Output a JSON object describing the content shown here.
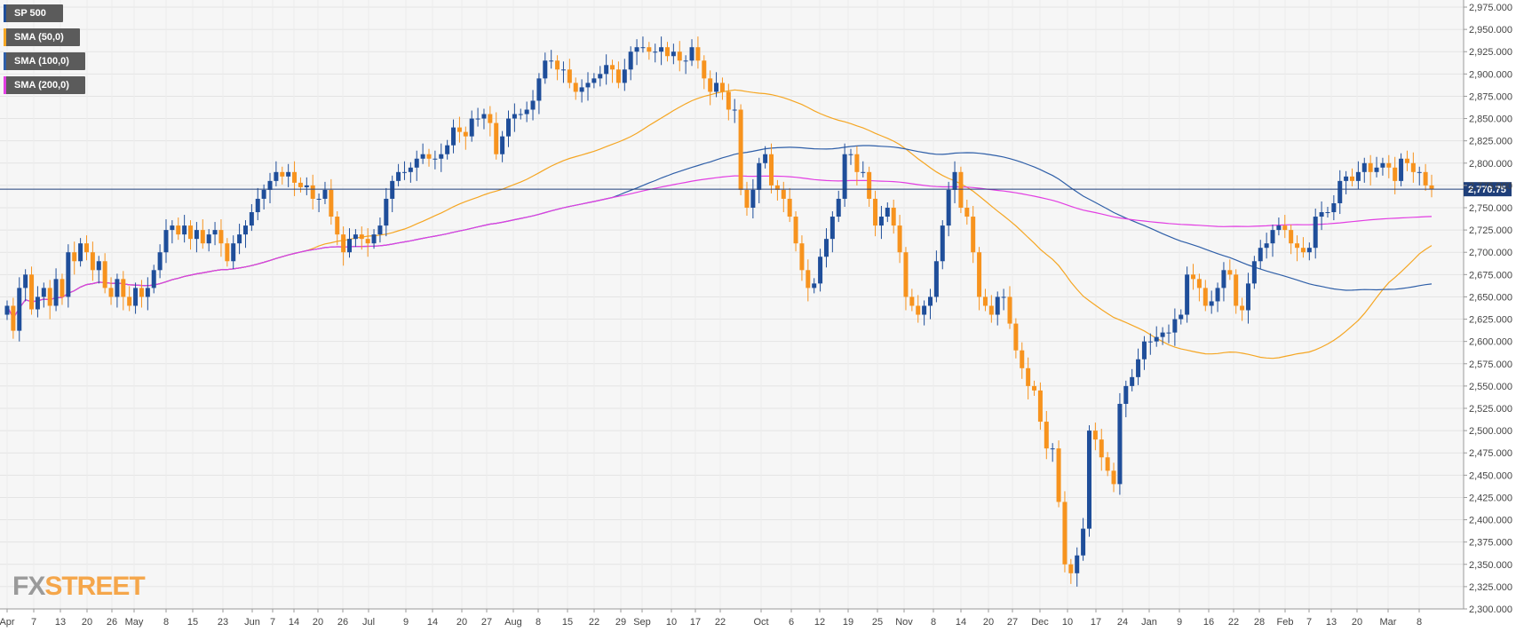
{
  "legend": [
    {
      "label": "SP 500",
      "color": "#1f4e9a"
    },
    {
      "label": "SMA (50,0)",
      "color": "#f5a623"
    },
    {
      "label": "SMA (100,0)",
      "color": "#2f5fa8"
    },
    {
      "label": "SMA (200,0)",
      "color": "#e23ee2"
    }
  ],
  "logo": {
    "part1": "FX",
    "part2": "STREET"
  },
  "chart_data": {
    "type": "candlestick",
    "title": "",
    "ylim": [
      2300,
      2975
    ],
    "y_ticks": [
      2300,
      2325,
      2350,
      2375,
      2400,
      2425,
      2450,
      2475,
      2500,
      2525,
      2550,
      2575,
      2600,
      2625,
      2650,
      2675,
      2700,
      2725,
      2750,
      2775,
      2800,
      2825,
      2850,
      2875,
      2900,
      2925,
      2950,
      2975
    ],
    "x_tick_labels": [
      "Apr",
      "7",
      "13",
      "20",
      "26",
      "May",
      "8",
      "15",
      "23",
      "Jun",
      "7",
      "14",
      "20",
      "26",
      "Jul",
      "9",
      "14",
      "20",
      "27",
      "Aug",
      "8",
      "15",
      "22",
      "29",
      "Sep",
      "10",
      "17",
      "22",
      "Oct",
      "6",
      "12",
      "19",
      "25",
      "Nov",
      "8",
      "14",
      "20",
      "27",
      "Dec",
      "10",
      "17",
      "24",
      "Jan",
      "9",
      "16",
      "22",
      "28",
      "Feb",
      "7",
      "13",
      "20",
      "Mar",
      "8"
    ],
    "last_price": {
      "label": "2,770.75",
      "value": 2770.75
    },
    "up_color": "#1f4e9a",
    "down_color": "#f7931e",
    "close_series": [
      2640,
      2612,
      2660,
      2675,
      2636,
      2650,
      2660,
      2640,
      2670,
      2650,
      2700,
      2690,
      2710,
      2700,
      2680,
      2690,
      2660,
      2650,
      2670,
      2650,
      2640,
      2660,
      2650,
      2660,
      2680,
      2700,
      2725,
      2730,
      2720,
      2730,
      2715,
      2725,
      2710,
      2720,
      2725,
      2710,
      2690,
      2710,
      2720,
      2730,
      2745,
      2760,
      2770,
      2780,
      2790,
      2785,
      2790,
      2778,
      2773,
      2775,
      2760,
      2760,
      2770,
      2740,
      2720,
      2700,
      2715,
      2720,
      2715,
      2710,
      2720,
      2730,
      2760,
      2780,
      2790,
      2790,
      2795,
      2805,
      2810,
      2805,
      2805,
      2810,
      2820,
      2840,
      2835,
      2830,
      2850,
      2850,
      2855,
      2845,
      2810,
      2830,
      2850,
      2855,
      2855,
      2860,
      2870,
      2895,
      2915,
      2915,
      2905,
      2905,
      2890,
      2880,
      2885,
      2890,
      2895,
      2900,
      2910,
      2905,
      2890,
      2905,
      2925,
      2930,
      2930,
      2925,
      2925,
      2930,
      2920,
      2925,
      2915,
      2915,
      2930,
      2915,
      2895,
      2880,
      2890,
      2880,
      2860,
      2860,
      2770,
      2750,
      2770,
      2800,
      2810,
      2775,
      2770,
      2760,
      2740,
      2710,
      2680,
      2660,
      2665,
      2695,
      2715,
      2740,
      2760,
      2810,
      2810,
      2790,
      2790,
      2760,
      2730,
      2740,
      2750,
      2730,
      2700,
      2650,
      2640,
      2630,
      2640,
      2650,
      2690,
      2730,
      2770,
      2790,
      2750,
      2740,
      2700,
      2650,
      2640,
      2630,
      2650,
      2650,
      2620,
      2590,
      2570,
      2550,
      2545,
      2510,
      2480,
      2480,
      2420,
      2350,
      2340,
      2360,
      2390,
      2500,
      2490,
      2470,
      2455,
      2440,
      2530,
      2550,
      2560,
      2580,
      2600,
      2600,
      2605,
      2610,
      2610,
      2625,
      2630,
      2675,
      2670,
      2660,
      2640,
      2645,
      2660,
      2680,
      2675,
      2640,
      2635,
      2665,
      2690,
      2705,
      2710,
      2725,
      2730,
      2725,
      2710,
      2705,
      2700,
      2705,
      2740,
      2745,
      2745,
      2755,
      2780,
      2785,
      2780,
      2790,
      2800,
      2790,
      2795,
      2800,
      2795,
      2780,
      2805,
      2800,
      2790,
      2790,
      2775,
      2770.75
    ]
  }
}
